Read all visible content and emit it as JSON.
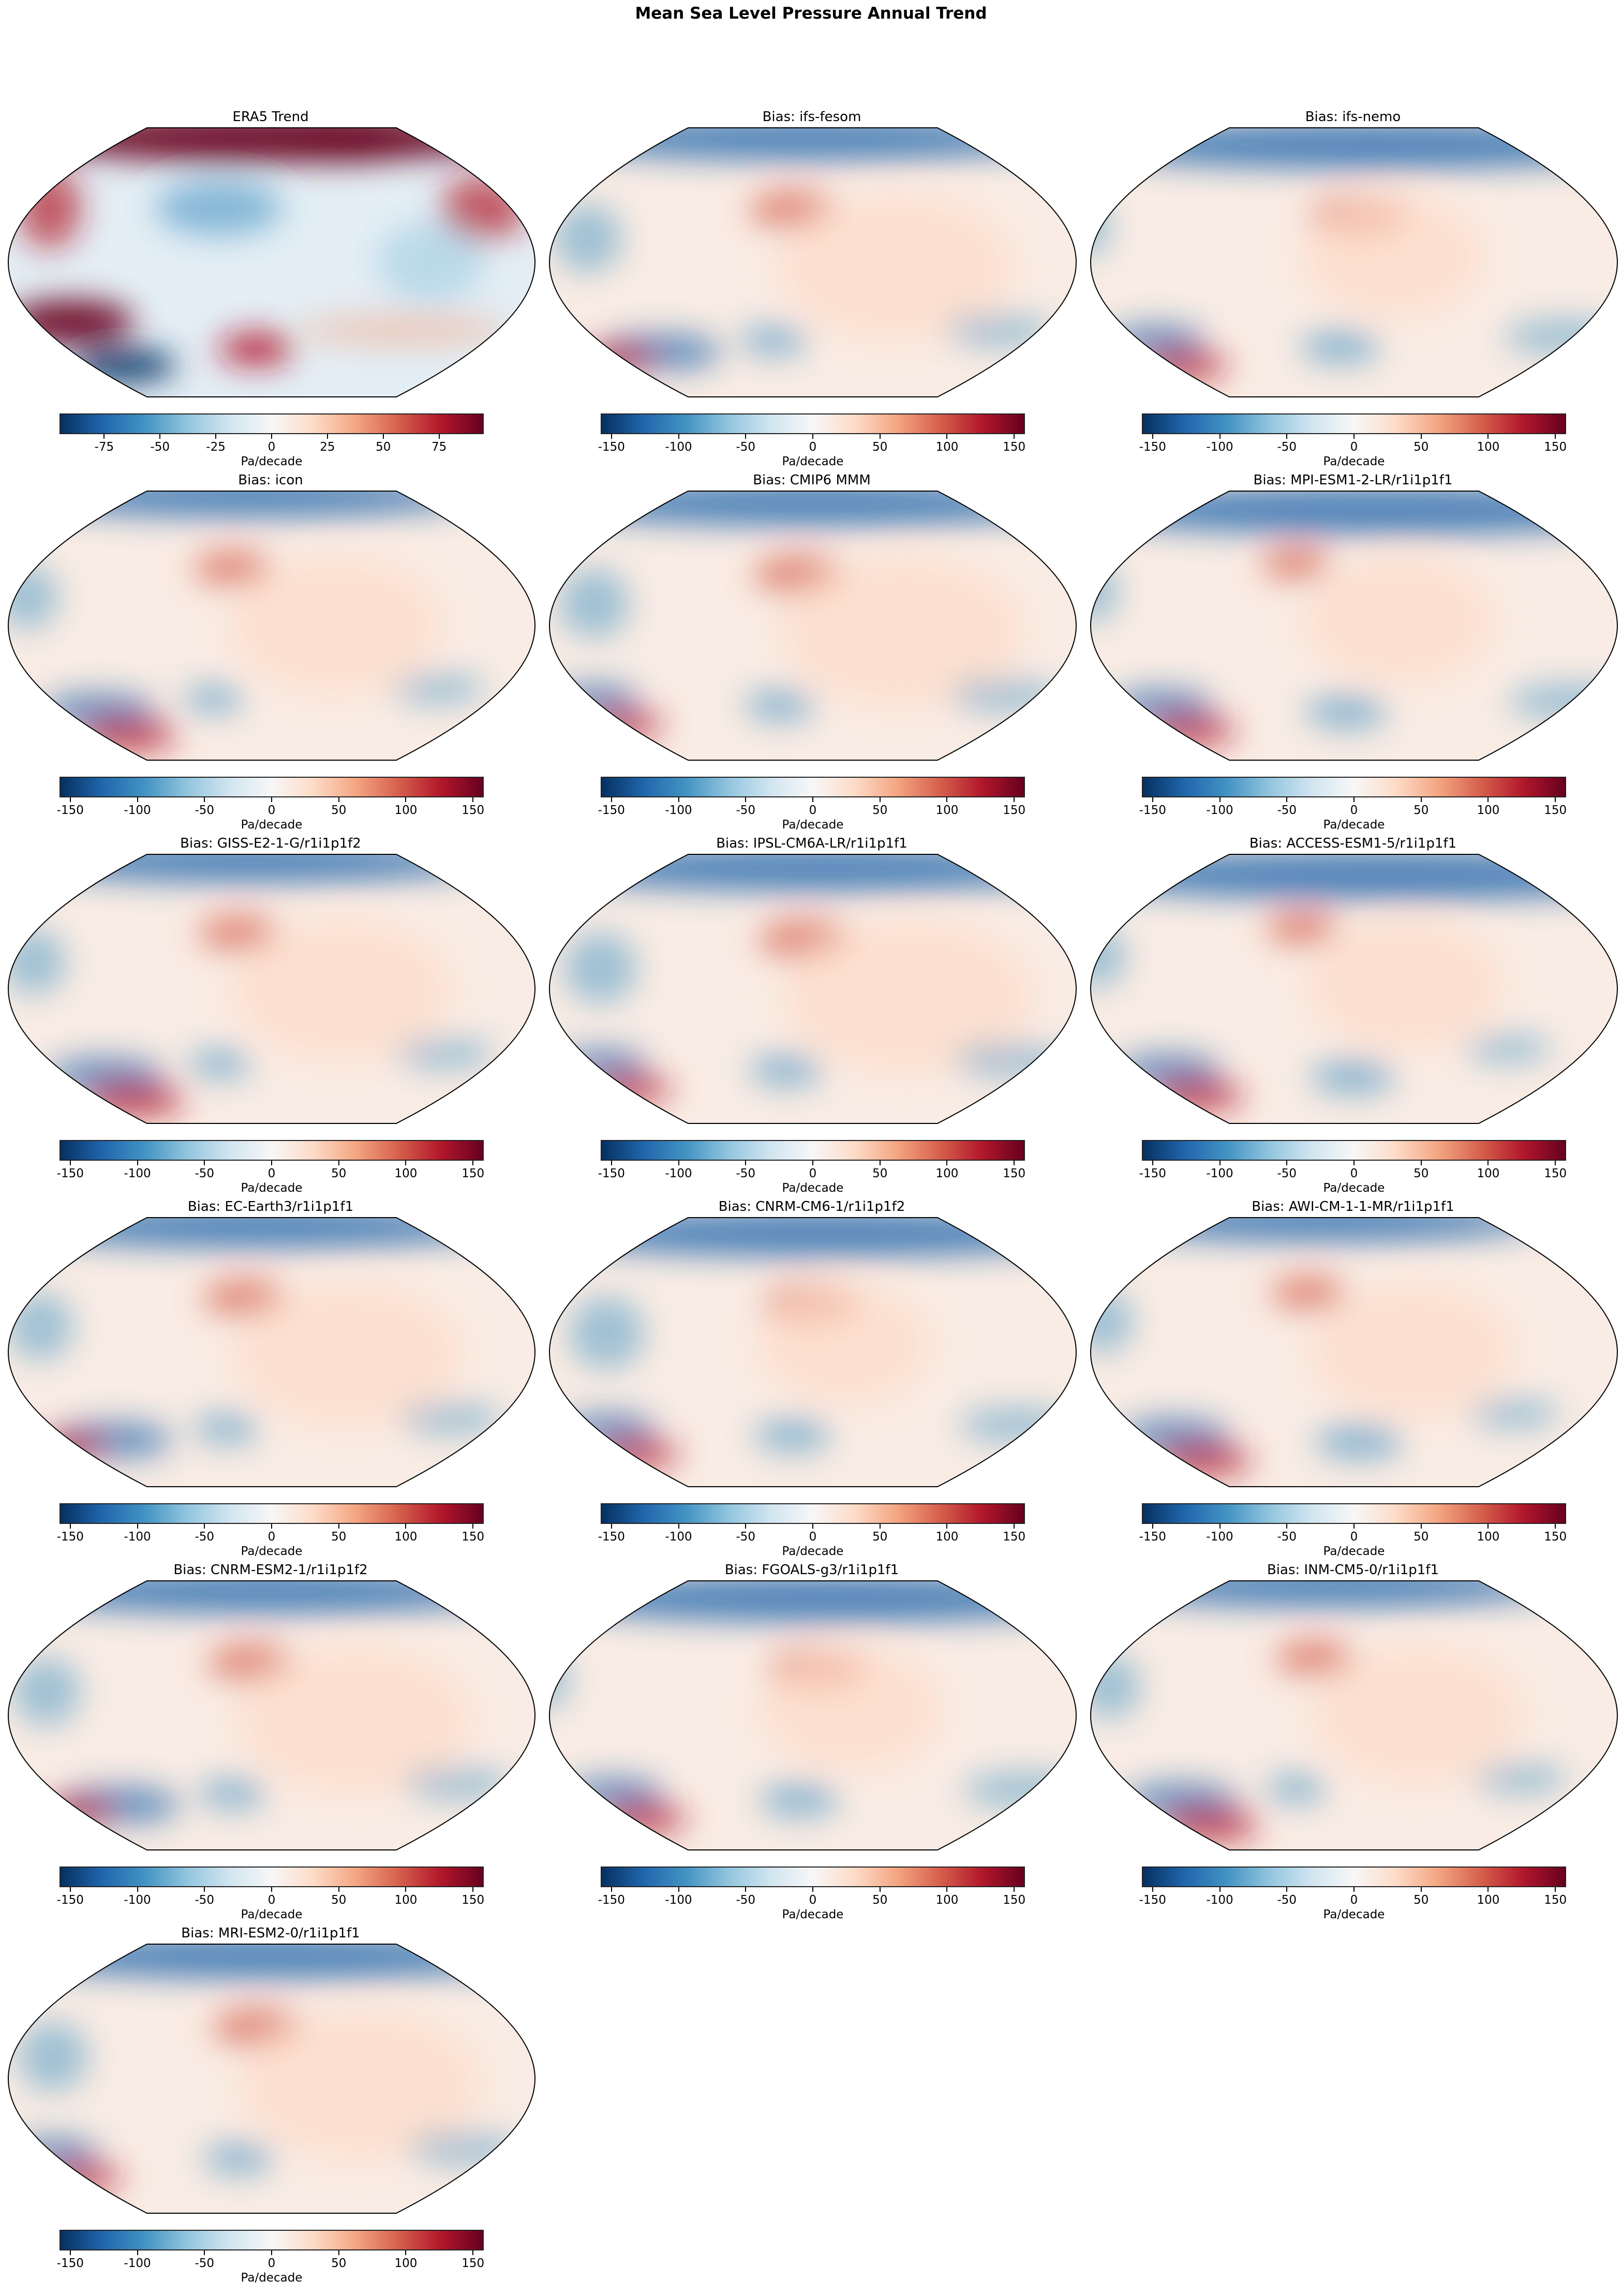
{
  "suptitle": "Mean Sea Level Pressure Annual Trend",
  "colormap": "RdBu_r",
  "colormap_stops": [
    "#053061",
    "#2166ac",
    "#4393c3",
    "#92c5de",
    "#d1e5f0",
    "#f7f7f7",
    "#fddbc7",
    "#f4a582",
    "#d6604d",
    "#b2182b",
    "#67001f"
  ],
  "colorbar_label": "Pa/decade",
  "panels": [
    {
      "title": "ERA5 Trend",
      "vmin": -95,
      "vmax": 95,
      "ticks": [
        "-75",
        "-50",
        "-25",
        "0",
        "25",
        "50",
        "75"
      ]
    },
    {
      "title": "Bias: ifs-fesom",
      "vmin": -158,
      "vmax": 158,
      "ticks": [
        "-150",
        "-100",
        "-50",
        "0",
        "50",
        "100",
        "150"
      ]
    },
    {
      "title": "Bias: ifs-nemo",
      "vmin": -158,
      "vmax": 158,
      "ticks": [
        "-150",
        "-100",
        "-50",
        "0",
        "50",
        "100",
        "150"
      ]
    },
    {
      "title": "Bias: icon",
      "vmin": -158,
      "vmax": 158,
      "ticks": [
        "-150",
        "-100",
        "-50",
        "0",
        "50",
        "100",
        "150"
      ]
    },
    {
      "title": "Bias: CMIP6 MMM",
      "vmin": -158,
      "vmax": 158,
      "ticks": [
        "-150",
        "-100",
        "-50",
        "0",
        "50",
        "100",
        "150"
      ]
    },
    {
      "title": "Bias: MPI-ESM1-2-LR/r1i1p1f1",
      "vmin": -158,
      "vmax": 158,
      "ticks": [
        "-150",
        "-100",
        "-50",
        "0",
        "50",
        "100",
        "150"
      ]
    },
    {
      "title": "Bias: GISS-E2-1-G/r1i1p1f2",
      "vmin": -158,
      "vmax": 158,
      "ticks": [
        "-150",
        "-100",
        "-50",
        "0",
        "50",
        "100",
        "150"
      ]
    },
    {
      "title": "Bias: IPSL-CM6A-LR/r1i1p1f1",
      "vmin": -158,
      "vmax": 158,
      "ticks": [
        "-150",
        "-100",
        "-50",
        "0",
        "50",
        "100",
        "150"
      ]
    },
    {
      "title": "Bias: ACCESS-ESM1-5/r1i1p1f1",
      "vmin": -158,
      "vmax": 158,
      "ticks": [
        "-150",
        "-100",
        "-50",
        "0",
        "50",
        "100",
        "150"
      ]
    },
    {
      "title": "Bias: EC-Earth3/r1i1p1f1",
      "vmin": -158,
      "vmax": 158,
      "ticks": [
        "-150",
        "-100",
        "-50",
        "0",
        "50",
        "100",
        "150"
      ]
    },
    {
      "title": "Bias: CNRM-CM6-1/r1i1p1f2",
      "vmin": -158,
      "vmax": 158,
      "ticks": [
        "-150",
        "-100",
        "-50",
        "0",
        "50",
        "100",
        "150"
      ]
    },
    {
      "title": "Bias: AWI-CM-1-1-MR/r1i1p1f1",
      "vmin": -158,
      "vmax": 158,
      "ticks": [
        "-150",
        "-100",
        "-50",
        "0",
        "50",
        "100",
        "150"
      ]
    },
    {
      "title": "Bias: CNRM-ESM2-1/r1i1p1f2",
      "vmin": -158,
      "vmax": 158,
      "ticks": [
        "-150",
        "-100",
        "-50",
        "0",
        "50",
        "100",
        "150"
      ]
    },
    {
      "title": "Bias: FGOALS-g3/r1i1p1f1",
      "vmin": -158,
      "vmax": 158,
      "ticks": [
        "-150",
        "-100",
        "-50",
        "0",
        "50",
        "100",
        "150"
      ]
    },
    {
      "title": "Bias: INM-CM5-0/r1i1p1f1",
      "vmin": -158,
      "vmax": 158,
      "ticks": [
        "-150",
        "-100",
        "-50",
        "0",
        "50",
        "100",
        "150"
      ]
    },
    {
      "title": "Bias: MRI-ESM2-0/r1i1p1f1",
      "vmin": -158,
      "vmax": 158,
      "ticks": [
        "-150",
        "-100",
        "-50",
        "0",
        "50",
        "100",
        "150"
      ]
    }
  ]
}
